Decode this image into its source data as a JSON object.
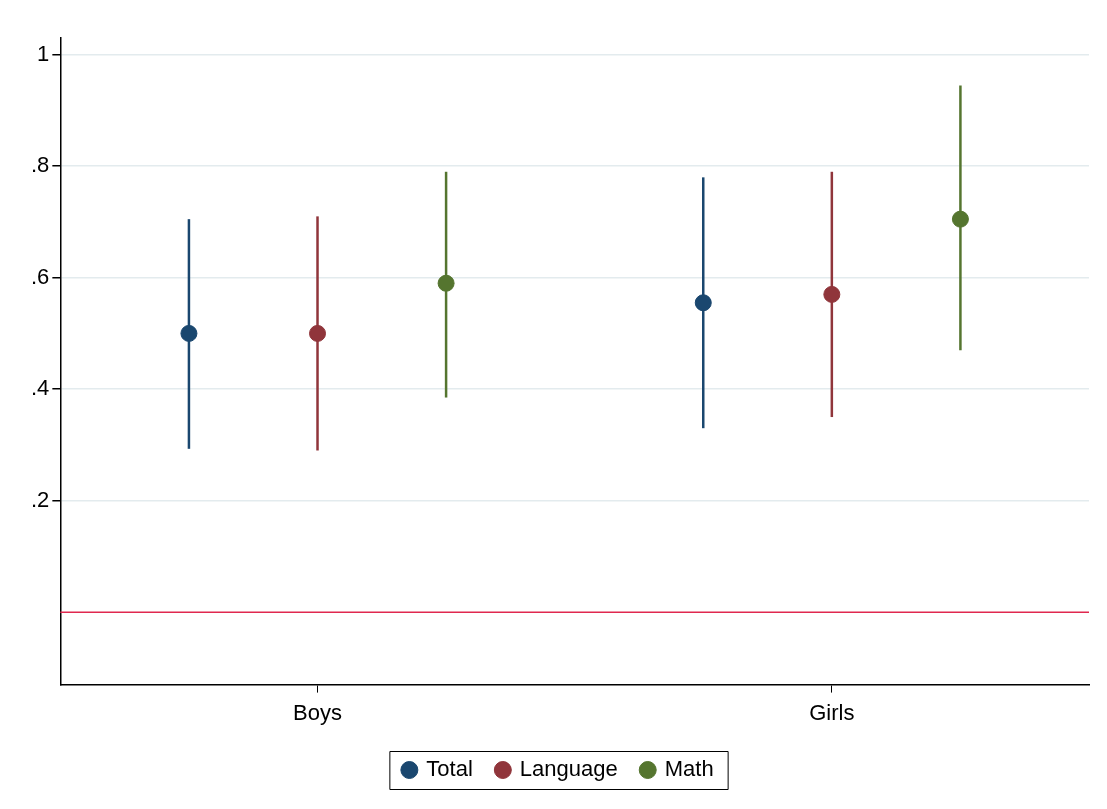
{
  "chart_data": {
    "type": "scatter",
    "categories": [
      "Boys",
      "Girls"
    ],
    "series": [
      {
        "name": "Total",
        "color": "#1a476f",
        "values": [
          0.5,
          0.555
        ],
        "errors": [
          [
            0.293,
            0.705
          ],
          [
            0.33,
            0.78
          ]
        ]
      },
      {
        "name": "Language",
        "color": "#90353b",
        "values": [
          0.5,
          0.57
        ],
        "errors": [
          [
            0.29,
            0.71
          ],
          [
            0.35,
            0.79
          ]
        ]
      },
      {
        "name": "Math",
        "color": "#55752f",
        "values": [
          0.59,
          0.705
        ],
        "errors": [
          [
            0.385,
            0.79
          ],
          [
            0.47,
            0.945
          ]
        ]
      }
    ],
    "ylim": [
      -0.13,
      1.03
    ],
    "yticks": [
      {
        "value": 0.2,
        "label": ".2"
      },
      {
        "value": 0.4,
        "label": ".4"
      },
      {
        "value": 0.6,
        "label": ".6"
      },
      {
        "value": 0.8,
        "label": ".8"
      },
      {
        "value": 1,
        "label": "1"
      }
    ],
    "ref_lines": [
      {
        "axis": "y",
        "value": 0,
        "color": "#e0284f"
      }
    ],
    "grid": "y",
    "legend": "bottom",
    "marker": "circle"
  }
}
